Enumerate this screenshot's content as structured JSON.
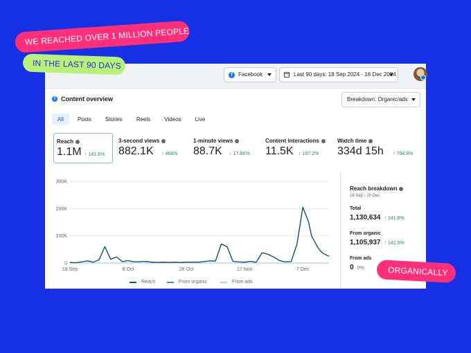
{
  "stickers": {
    "headline": "WE REACHED OVER 1 MILLION PEOPLE",
    "subline": "IN THE LAST 90 DAYS",
    "badge": "ORGANICALLY"
  },
  "colors": {
    "background": "#1630e6",
    "pink": "#ff2f79",
    "lime": "#b8f27a",
    "reach_line": "#1b4f5f",
    "positive": "#23875a"
  },
  "header": {
    "platform": "Facebook",
    "date_range": "Last 90 days: 18 Sep 2024 - 16 Dec 2024",
    "platform_icon": "facebook-icon",
    "date_icon": "calendar-icon"
  },
  "overview": {
    "title": "Content overview",
    "breakdown_select": "Breakdown: Organic/ads",
    "tabs": [
      "All",
      "Posts",
      "Stories",
      "Reels",
      "Videos",
      "Live"
    ],
    "active_tab": "All"
  },
  "metrics": [
    {
      "label": "Reach",
      "value": "1.1M",
      "change": "↑ 141.6%"
    },
    {
      "label": "3-second views",
      "value": "882.1K",
      "change": "↑ 464%"
    },
    {
      "label": "1-minute views",
      "value": "88.7K",
      "change": "↑ 17.8K%"
    },
    {
      "label": "Content interactions",
      "value": "11.5K",
      "change": "↑ 197.2%"
    },
    {
      "label": "Watch time",
      "value": "334d 15h",
      "change": "↑ 794.8%"
    }
  ],
  "chart_data": {
    "type": "line",
    "title": "",
    "xlabel": "",
    "ylabel": "",
    "ylim": [
      0,
      300000
    ],
    "y_ticks": [
      "300K",
      "200K",
      "100K",
      "0"
    ],
    "x_ticks": [
      "18 Sep",
      "8 Oct",
      "28 Oct",
      "17 Nov",
      "7 Dec"
    ],
    "x": [
      "18 Sep",
      "20 Sep",
      "22 Sep",
      "24 Sep",
      "26 Sep",
      "28 Sep",
      "30 Sep",
      "2 Oct",
      "4 Oct",
      "6 Oct",
      "8 Oct",
      "10 Oct",
      "12 Oct",
      "14 Oct",
      "16 Oct",
      "18 Oct",
      "20 Oct",
      "22 Oct",
      "24 Oct",
      "26 Oct",
      "28 Oct",
      "30 Oct",
      "1 Nov",
      "3 Nov",
      "5 Nov",
      "7 Nov",
      "9 Nov",
      "11 Nov",
      "13 Nov",
      "15 Nov",
      "17 Nov",
      "19 Nov",
      "21 Nov",
      "23 Nov",
      "25 Nov",
      "27 Nov",
      "29 Nov",
      "1 Dec",
      "3 Dec",
      "5 Dec",
      "7 Dec",
      "9 Dec",
      "10 Dec",
      "11 Dec",
      "12 Dec",
      "13 Dec",
      "14 Dec",
      "16 Dec"
    ],
    "grid": true,
    "legend_position": "bottom",
    "series": [
      {
        "name": "Reach",
        "values": [
          2000,
          1000,
          4000,
          8000,
          3000,
          12000,
          60000,
          14000,
          22000,
          5000,
          9000,
          4000,
          5000,
          6000,
          3000,
          2000,
          3000,
          2000,
          3000,
          2000,
          3000,
          3000,
          3000,
          5000,
          8000,
          7000,
          70000,
          60000,
          6000,
          4000,
          3000,
          6000,
          3000,
          38000,
          32000,
          22000,
          9000,
          4000,
          5000,
          70000,
          205000,
          150000,
          100000,
          80000,
          60000,
          45000,
          35000,
          25000
        ]
      },
      {
        "name": "From organic",
        "values": [
          2000,
          1000,
          4000,
          8000,
          3000,
          12000,
          60000,
          14000,
          22000,
          5000,
          9000,
          4000,
          5000,
          6000,
          3000,
          2000,
          3000,
          2000,
          3000,
          2000,
          3000,
          3000,
          3000,
          5000,
          8000,
          7000,
          70000,
          60000,
          6000,
          4000,
          3000,
          6000,
          3000,
          38000,
          32000,
          22000,
          9000,
          4000,
          5000,
          70000,
          205000,
          150000,
          100000,
          80000,
          60000,
          45000,
          35000,
          25000
        ]
      },
      {
        "name": "From ads",
        "values": [
          0,
          0,
          0,
          0,
          0,
          0,
          0,
          0,
          0,
          0,
          0,
          0,
          0,
          0,
          0,
          0,
          0,
          0,
          0,
          0,
          0,
          0,
          0,
          0,
          0,
          0,
          0,
          0,
          0,
          0,
          0,
          0,
          0,
          0,
          0,
          0,
          0,
          0,
          0,
          0,
          0,
          0,
          0,
          0,
          0,
          0,
          0,
          0
        ]
      }
    ]
  },
  "breakdown": {
    "title": "Reach breakdown",
    "subtitle": "18 Sep - 16 Dec",
    "total_label": "Total",
    "total_value": "1,130,634",
    "total_change": "↑ 141.6%",
    "organic_label": "From organic",
    "organic_value": "1,105,937",
    "organic_change": "↑ 142.5%",
    "ads_label": "From ads",
    "ads_value": "0",
    "ads_change": "0%"
  }
}
